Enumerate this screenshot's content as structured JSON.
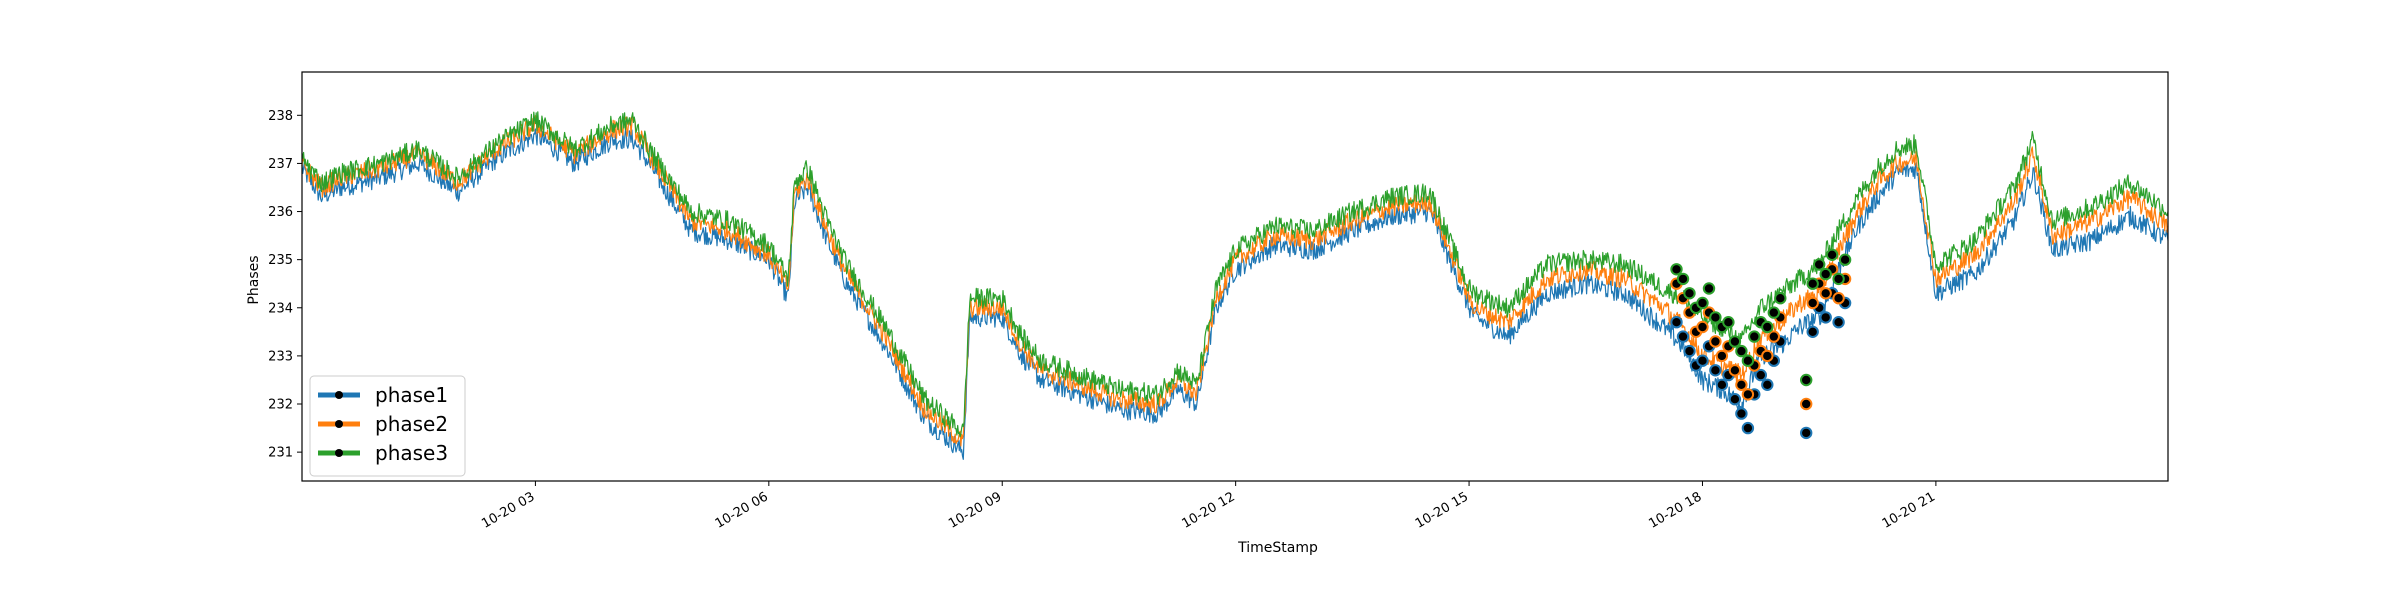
{
  "chart_data": {
    "type": "line",
    "title": "",
    "xlabel": "TimeStamp",
    "ylabel": "Phases",
    "xlim": [
      "10-20 00:00",
      "23:59"
    ],
    "ylim": [
      230.4,
      238.9
    ],
    "x_ticks": [
      "10-20 03",
      "10-20 06",
      "10-20 09",
      "10-20 12",
      "10-20 15",
      "10-20 18",
      "10-20 21"
    ],
    "y_ticks": [
      231,
      232,
      233,
      234,
      235,
      236,
      237,
      238
    ],
    "grid": false,
    "legend_position": "lower-left",
    "series": [
      {
        "name": "phase1",
        "color": "#1f77b4",
        "x": [
          "00:00",
          "00:15",
          "00:30",
          "01:00",
          "01:30",
          "02:00",
          "02:30",
          "03:00",
          "03:30",
          "04:00",
          "04:15",
          "04:30",
          "05:00",
          "05:30",
          "06:00",
          "06:15",
          "06:20",
          "06:30",
          "06:45",
          "07:00",
          "07:30",
          "08:00",
          "08:30",
          "08:35",
          "09:00",
          "09:15",
          "09:30",
          "10:00",
          "10:30",
          "11:00",
          "11:15",
          "11:30",
          "11:45",
          "12:00",
          "12:30",
          "13:00",
          "13:30",
          "14:00",
          "14:30",
          "15:00",
          "15:05",
          "15:30",
          "16:00",
          "16:30",
          "17:00",
          "17:30",
          "17:45",
          "18:00",
          "18:15",
          "18:30",
          "18:45",
          "19:00",
          "19:15",
          "19:30",
          "19:45",
          "20:00",
          "20:15",
          "20:30",
          "20:45",
          "21:00",
          "21:30",
          "22:00",
          "22:15",
          "22:30",
          "23:00",
          "23:30",
          "23:59"
        ],
        "y": [
          236.9,
          236.3,
          236.5,
          236.7,
          237.0,
          236.4,
          237.1,
          237.6,
          237.0,
          237.5,
          237.5,
          236.9,
          235.6,
          235.4,
          235.0,
          234.2,
          236.2,
          236.5,
          235.4,
          234.5,
          233.2,
          231.7,
          231.0,
          233.8,
          233.8,
          233.0,
          232.5,
          232.2,
          231.9,
          231.8,
          232.3,
          232.0,
          234.0,
          234.8,
          235.3,
          235.2,
          235.6,
          235.9,
          236.0,
          234.0,
          233.8,
          233.4,
          234.3,
          234.5,
          234.3,
          233.6,
          233.2,
          232.5,
          232.3,
          232.0,
          233.0,
          233.2,
          233.6,
          233.8,
          234.8,
          235.7,
          236.3,
          236.8,
          236.9,
          234.3,
          234.7,
          235.8,
          236.8,
          235.2,
          235.4,
          235.9,
          235.4
        ]
      },
      {
        "name": "phase2",
        "color": "#ff7f0e",
        "x": [
          "00:00",
          "00:15",
          "00:30",
          "01:00",
          "01:30",
          "02:00",
          "02:30",
          "03:00",
          "03:30",
          "04:00",
          "04:15",
          "04:30",
          "05:00",
          "05:30",
          "06:00",
          "06:15",
          "06:20",
          "06:30",
          "06:45",
          "07:00",
          "07:30",
          "08:00",
          "08:30",
          "08:35",
          "09:00",
          "09:15",
          "09:30",
          "10:00",
          "10:30",
          "11:00",
          "11:15",
          "11:30",
          "11:45",
          "12:00",
          "12:30",
          "13:00",
          "13:30",
          "14:00",
          "14:30",
          "15:00",
          "15:05",
          "15:30",
          "16:00",
          "16:30",
          "17:00",
          "17:30",
          "17:45",
          "18:00",
          "18:15",
          "18:30",
          "18:45",
          "19:00",
          "19:15",
          "19:30",
          "19:45",
          "20:00",
          "20:15",
          "20:30",
          "20:45",
          "21:00",
          "21:30",
          "22:00",
          "22:15",
          "22:30",
          "23:00",
          "23:30",
          "23:59"
        ],
        "y": [
          237.0,
          236.5,
          236.7,
          236.9,
          237.2,
          236.6,
          237.3,
          237.8,
          237.2,
          237.7,
          237.8,
          237.1,
          235.8,
          235.6,
          235.1,
          234.4,
          236.4,
          236.7,
          235.6,
          234.7,
          233.4,
          231.9,
          231.2,
          234.0,
          234.0,
          233.2,
          232.7,
          232.4,
          232.1,
          232.0,
          232.5,
          232.2,
          234.2,
          235.0,
          235.5,
          235.4,
          235.8,
          236.1,
          236.2,
          234.2,
          234.0,
          233.7,
          234.6,
          234.8,
          234.6,
          234.0,
          233.6,
          233.0,
          232.8,
          232.6,
          233.4,
          233.7,
          234.1,
          234.3,
          235.2,
          236.0,
          236.6,
          237.0,
          237.1,
          234.6,
          235.1,
          236.2,
          237.2,
          235.5,
          235.8,
          236.3,
          235.7
        ]
      },
      {
        "name": "phase3",
        "color": "#2ca02c",
        "x": [
          "00:00",
          "00:15",
          "00:30",
          "01:00",
          "01:30",
          "02:00",
          "02:30",
          "03:00",
          "03:30",
          "04:00",
          "04:15",
          "04:30",
          "05:00",
          "05:30",
          "06:00",
          "06:15",
          "06:20",
          "06:30",
          "06:45",
          "07:00",
          "07:30",
          "08:00",
          "08:30",
          "08:35",
          "09:00",
          "09:15",
          "09:30",
          "10:00",
          "10:30",
          "11:00",
          "11:15",
          "11:30",
          "11:45",
          "12:00",
          "12:30",
          "13:00",
          "13:30",
          "14:00",
          "14:30",
          "15:00",
          "15:05",
          "15:30",
          "16:00",
          "16:30",
          "17:00",
          "17:30",
          "17:45",
          "18:00",
          "18:15",
          "18:30",
          "18:45",
          "19:00",
          "19:15",
          "19:30",
          "19:45",
          "20:00",
          "20:15",
          "20:30",
          "20:45",
          "21:00",
          "21:30",
          "22:00",
          "22:15",
          "22:30",
          "23:00",
          "23:30",
          "23:59"
        ],
        "y": [
          237.1,
          236.6,
          236.8,
          237.0,
          237.3,
          236.7,
          237.4,
          237.9,
          237.3,
          237.8,
          237.9,
          237.2,
          236.0,
          235.8,
          235.3,
          234.6,
          236.6,
          236.9,
          235.8,
          234.9,
          233.6,
          232.1,
          231.4,
          234.2,
          234.2,
          233.4,
          232.9,
          232.6,
          232.3,
          232.2,
          232.7,
          232.4,
          234.4,
          235.2,
          235.7,
          235.6,
          236.0,
          236.3,
          236.4,
          234.4,
          234.3,
          234.0,
          234.9,
          235.0,
          234.9,
          234.4,
          234.2,
          233.8,
          233.6,
          233.3,
          234.0,
          234.3,
          234.6,
          234.9,
          235.6,
          236.3,
          236.9,
          237.3,
          237.4,
          234.9,
          235.4,
          236.5,
          237.5,
          235.8,
          236.1,
          236.6,
          236.0
        ]
      }
    ],
    "markers": [
      {
        "series": "phase1",
        "x": [
          "17:40",
          "17:45",
          "17:50",
          "17:55",
          "18:00",
          "18:05",
          "18:10",
          "18:15",
          "18:20",
          "18:25",
          "18:30",
          "18:35",
          "18:40",
          "18:45",
          "18:50",
          "18:55",
          "19:00",
          "19:20",
          "19:25",
          "19:30",
          "19:35",
          "19:40",
          "19:45",
          "19:50"
        ],
        "y": [
          233.7,
          233.4,
          233.1,
          232.8,
          232.9,
          233.2,
          232.7,
          232.4,
          232.6,
          232.1,
          231.8,
          231.5,
          232.2,
          232.6,
          232.4,
          232.9,
          233.3,
          231.4,
          233.5,
          234.0,
          233.8,
          234.3,
          233.7,
          234.1
        ]
      },
      {
        "series": "phase2",
        "x": [
          "17:40",
          "17:45",
          "17:50",
          "17:55",
          "18:00",
          "18:05",
          "18:10",
          "18:15",
          "18:20",
          "18:25",
          "18:30",
          "18:35",
          "18:40",
          "18:45",
          "18:50",
          "18:55",
          "19:00",
          "19:20",
          "19:25",
          "19:30",
          "19:35",
          "19:40",
          "19:45",
          "19:50"
        ],
        "y": [
          234.5,
          234.2,
          233.9,
          233.5,
          233.6,
          233.9,
          233.3,
          233.0,
          233.2,
          232.7,
          232.4,
          232.2,
          232.8,
          233.1,
          233.0,
          233.4,
          233.8,
          232.0,
          234.1,
          234.5,
          234.3,
          234.8,
          234.2,
          234.6
        ]
      },
      {
        "series": "phase3",
        "x": [
          "17:40",
          "17:45",
          "17:50",
          "17:55",
          "18:00",
          "18:05",
          "18:10",
          "18:15",
          "18:20",
          "18:25",
          "18:30",
          "18:35",
          "18:40",
          "18:45",
          "18:50",
          "18:55",
          "19:00",
          "19:20",
          "19:25",
          "19:30",
          "19:35",
          "19:40",
          "19:45",
          "19:50"
        ],
        "y": [
          234.8,
          234.6,
          234.3,
          234.0,
          234.1,
          234.4,
          233.8,
          233.6,
          233.7,
          233.3,
          233.1,
          232.9,
          233.4,
          233.7,
          233.6,
          233.9,
          234.2,
          232.5,
          234.5,
          234.9,
          234.7,
          235.1,
          234.6,
          235.0
        ]
      }
    ]
  },
  "legend": {
    "items": [
      {
        "label": "phase1",
        "color": "#1f77b4"
      },
      {
        "label": "phase2",
        "color": "#ff7f0e"
      },
      {
        "label": "phase3",
        "color": "#2ca02c"
      }
    ]
  }
}
